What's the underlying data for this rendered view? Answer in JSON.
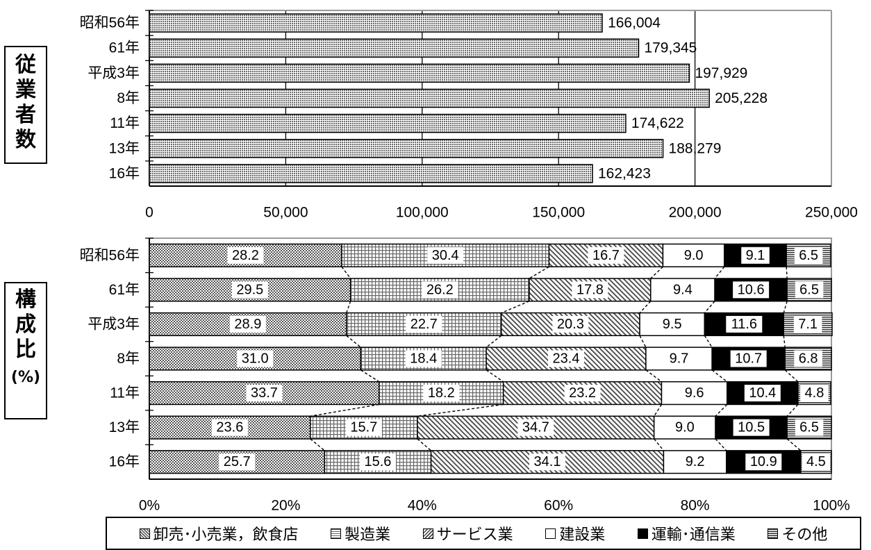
{
  "side_labels": {
    "top": [
      "従",
      "業",
      "者",
      "数"
    ],
    "bottom": [
      "構",
      "成",
      "比"
    ],
    "bottom_unit": "(%)"
  },
  "chart_data": [
    {
      "type": "bar",
      "orientation": "horizontal",
      "categories": [
        "昭和56年",
        "61年",
        "平成3年",
        "8年",
        "11年",
        "13年",
        "16年"
      ],
      "values": [
        166004,
        179345,
        197929,
        205228,
        174622,
        188279,
        162423
      ],
      "value_labels": [
        "166,004",
        "179,345",
        "197,929",
        "205,228",
        "174,622",
        "188,279",
        "162,423"
      ],
      "xlim": [
        0,
        250000
      ],
      "xticks": [
        "0",
        "50,000",
        "100,000",
        "150,000",
        "200,000",
        "250,000"
      ],
      "grid": true,
      "bar_pattern": "fine-dots"
    },
    {
      "type": "bar",
      "orientation": "horizontal",
      "stacked": true,
      "percent": true,
      "categories": [
        "昭和56年",
        "61年",
        "平成3年",
        "8年",
        "11年",
        "13年",
        "16年"
      ],
      "series": [
        {
          "name": "卸売･小売業，飲食店",
          "values": [
            28.2,
            29.5,
            28.9,
            31.0,
            33.7,
            23.6,
            25.7
          ],
          "labels": [
            "28.2",
            "29.5",
            "28.9",
            "31.0",
            "33.7",
            "23.6",
            "25.7"
          ],
          "pattern": "dots",
          "color": "#888888"
        },
        {
          "name": "製造業",
          "values": [
            30.4,
            26.2,
            22.7,
            18.4,
            18.2,
            15.7,
            15.6
          ],
          "labels": [
            "30.4",
            "26.2",
            "22.7",
            "18.4",
            "18.2",
            "15.7",
            "15.6"
          ],
          "pattern": "grid",
          "color": "#cccccc"
        },
        {
          "name": "サービス業",
          "values": [
            16.7,
            17.8,
            20.3,
            23.4,
            23.2,
            34.7,
            34.1
          ],
          "labels": [
            "16.7",
            "17.8",
            "20.3",
            "23.4",
            "23.2",
            "34.7",
            "34.1"
          ],
          "pattern": "diagonal",
          "color": "#aaaaaa"
        },
        {
          "name": "建設業",
          "values": [
            9.0,
            9.4,
            9.5,
            9.7,
            9.6,
            9.0,
            9.2
          ],
          "labels": [
            "9.0",
            "9.4",
            "9.5",
            "9.7",
            "9.6",
            "9.0",
            "9.2"
          ],
          "pattern": "white",
          "color": "#ffffff"
        },
        {
          "name": "運輸･通信業",
          "values": [
            9.1,
            10.6,
            11.6,
            10.7,
            10.4,
            10.5,
            10.9
          ],
          "labels": [
            "9.1",
            "10.6",
            "11.6",
            "10.7",
            "10.4",
            "10.5",
            "10.9"
          ],
          "pattern": "black",
          "color": "#000000"
        },
        {
          "name": "その他",
          "values": [
            6.5,
            6.5,
            7.1,
            6.8,
            4.8,
            6.5,
            4.5
          ],
          "labels": [
            "6.5",
            "6.5",
            "7.1",
            "6.8",
            "4.8",
            "6.5",
            "4.5"
          ],
          "pattern": "hlines",
          "color": "#666666"
        }
      ],
      "xlim": [
        0,
        100
      ],
      "xticks": [
        "0%",
        "20%",
        "40%",
        "60%",
        "80%",
        "100%"
      ],
      "connector_lines": "dashed",
      "legend_position": "bottom"
    }
  ]
}
